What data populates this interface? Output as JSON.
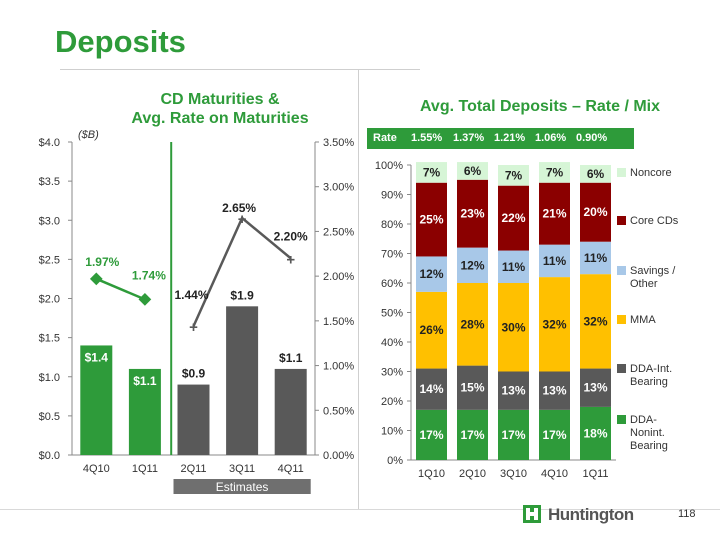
{
  "page": {
    "title": "Deposits",
    "page_number": "118",
    "logo_text": "Huntington"
  },
  "colors": {
    "green": "#2e9b3a",
    "dark_gray": "#595959",
    "noncore": "#d6f5d6",
    "core_cds": "#8b0000",
    "savings": "#a8c8e8",
    "mma": "#ffc000",
    "dda_int": "#595959",
    "dda_nonint": "#2e9b3a"
  },
  "left_chart": {
    "title_line1": "CD Maturities &",
    "title_line2": "Avg. Rate on Maturities",
    "unit_label": "($B)",
    "estimates_label": "Estimates"
  },
  "right_chart": {
    "title": "Avg. Total Deposits – Rate / Mix",
    "rate_label": "Rate",
    "rates": [
      "1.55%",
      "1.37%",
      "1.21%",
      "1.06%",
      "0.90%"
    ]
  },
  "chart_data": [
    {
      "type": "bar",
      "title": "CD Maturities & Avg. Rate on Maturities",
      "ylabel": "($B)",
      "categories": [
        "4Q10",
        "1Q11",
        "2Q11",
        "3Q11",
        "4Q11"
      ],
      "values": [
        1.4,
        1.1,
        0.9,
        1.9,
        1.1
      ],
      "value_labels": [
        "$1.4",
        "$1.1",
        "$0.9",
        "$1.9",
        "$1.1"
      ],
      "estimate_flags": [
        false,
        false,
        true,
        true,
        true
      ],
      "ylim": [
        0,
        4.0
      ],
      "yticks": [
        "$0.0",
        "$0.5",
        "$1.0",
        "$1.5",
        "$2.0",
        "$2.5",
        "$3.0",
        "$3.5",
        "$4.0"
      ],
      "y2lim": [
        0,
        3.5
      ],
      "y2ticks": [
        "0.00%",
        "0.50%",
        "1.00%",
        "1.50%",
        "2.00%",
        "2.50%",
        "3.00%",
        "3.50%"
      ],
      "rate_series_actual": {
        "name": "Avg. Rate (actual)",
        "values": [
          1.97,
          1.74
        ],
        "labels": [
          "1.97%",
          "1.74%"
        ]
      },
      "rate_series_estimate": {
        "name": "Avg. Rate (estimate)",
        "values": [
          1.44,
          2.65,
          2.2
        ],
        "labels": [
          "1.44%",
          "2.65%",
          "2.20%"
        ]
      }
    },
    {
      "type": "bar",
      "stacked": true,
      "title": "Avg. Total Deposits – Rate / Mix",
      "categories": [
        "1Q10",
        "2Q10",
        "3Q10",
        "4Q10",
        "1Q11"
      ],
      "ylim": [
        0,
        100
      ],
      "yticks": [
        "0%",
        "10%",
        "20%",
        "30%",
        "40%",
        "50%",
        "60%",
        "70%",
        "80%",
        "90%",
        "100%"
      ],
      "series": [
        {
          "name": "DDA-Nonint. Bearing",
          "legend_lines": [
            "DDA-",
            "Nonint.",
            "Bearing"
          ],
          "values": [
            17,
            17,
            17,
            17,
            18
          ]
        },
        {
          "name": "DDA-Int. Bearing",
          "legend_lines": [
            "DDA-Int.",
            "Bearing"
          ],
          "values": [
            14,
            15,
            13,
            13,
            13
          ]
        },
        {
          "name": "MMA",
          "legend_lines": [
            "MMA"
          ],
          "values": [
            26,
            28,
            30,
            32,
            32
          ]
        },
        {
          "name": "Savings / Other",
          "legend_lines": [
            "Savings /",
            "Other"
          ],
          "values": [
            12,
            12,
            11,
            11,
            11
          ]
        },
        {
          "name": "Core CDs",
          "legend_lines": [
            "Core CDs"
          ],
          "values": [
            25,
            23,
            22,
            21,
            20
          ]
        },
        {
          "name": "Noncore",
          "legend_lines": [
            "Noncore"
          ],
          "values": [
            7,
            6,
            7,
            7,
            6
          ]
        }
      ]
    }
  ]
}
